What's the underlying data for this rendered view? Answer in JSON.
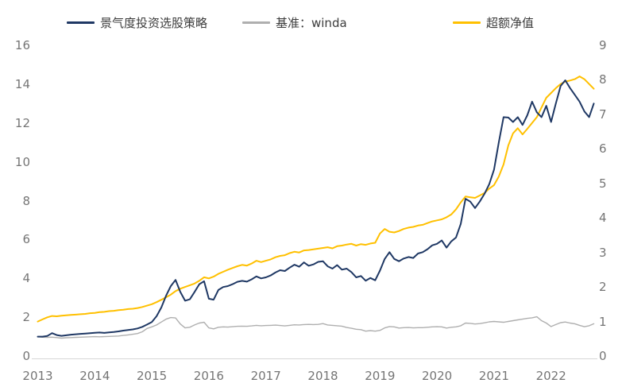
{
  "legend": {
    "items": [
      {
        "label": "景气度投资选股策略",
        "color": "#1F3864"
      },
      {
        "label": "基准：winda",
        "color": "#AFAFAF"
      },
      {
        "label": "超额净值",
        "color": "#FFC000"
      }
    ]
  },
  "chart_data": {
    "type": "line",
    "title": "",
    "xlabel": "",
    "ylabel_left": "",
    "ylabel_right": "",
    "grid": false,
    "legend_position": "top",
    "x_start_year": 2013,
    "points_per_year": 12,
    "x_tick_labels": [
      "2013",
      "2014",
      "2015",
      "2016",
      "2017",
      "2018",
      "2019",
      "2020",
      "2021",
      "2022"
    ],
    "left_axis": {
      "range": [
        0,
        16
      ],
      "ticks": [
        0,
        2,
        4,
        6,
        8,
        10,
        12,
        14,
        16
      ]
    },
    "right_axis": {
      "range": [
        0,
        9
      ],
      "ticks": [
        0,
        1,
        2,
        3,
        4,
        5,
        6,
        7,
        8,
        9
      ]
    },
    "series": [
      {
        "name": "基准：winda",
        "axis": "left",
        "color": "#AFAFAF",
        "width": 1.4,
        "values": [
          1.0,
          0.97,
          0.96,
          0.97,
          0.95,
          0.92,
          0.94,
          0.95,
          0.96,
          0.97,
          0.98,
          0.99,
          1.0,
          0.99,
          1.0,
          1.01,
          1.02,
          1.03,
          1.06,
          1.09,
          1.12,
          1.16,
          1.25,
          1.42,
          1.5,
          1.6,
          1.75,
          1.9,
          1.98,
          1.96,
          1.65,
          1.45,
          1.48,
          1.6,
          1.7,
          1.74,
          1.45,
          1.4,
          1.48,
          1.5,
          1.49,
          1.51,
          1.53,
          1.54,
          1.53,
          1.55,
          1.58,
          1.56,
          1.57,
          1.58,
          1.59,
          1.57,
          1.55,
          1.58,
          1.61,
          1.6,
          1.62,
          1.63,
          1.62,
          1.63,
          1.67,
          1.6,
          1.58,
          1.56,
          1.54,
          1.47,
          1.43,
          1.38,
          1.36,
          1.28,
          1.31,
          1.28,
          1.32,
          1.45,
          1.52,
          1.5,
          1.44,
          1.46,
          1.47,
          1.45,
          1.46,
          1.46,
          1.48,
          1.5,
          1.51,
          1.5,
          1.44,
          1.48,
          1.5,
          1.56,
          1.7,
          1.68,
          1.65,
          1.67,
          1.71,
          1.76,
          1.78,
          1.76,
          1.74,
          1.78,
          1.82,
          1.86,
          1.9,
          1.94,
          1.97,
          2.02,
          1.82,
          1.7,
          1.52,
          1.62,
          1.72,
          1.75,
          1.7,
          1.66,
          1.58,
          1.51,
          1.56,
          1.66
        ]
      },
      {
        "name": "超额净值",
        "axis": "right",
        "color": "#FFC000",
        "width": 2,
        "values": [
          1.0,
          1.06,
          1.12,
          1.16,
          1.15,
          1.17,
          1.18,
          1.19,
          1.2,
          1.21,
          1.22,
          1.24,
          1.25,
          1.27,
          1.28,
          1.3,
          1.31,
          1.33,
          1.34,
          1.36,
          1.37,
          1.39,
          1.42,
          1.46,
          1.5,
          1.56,
          1.63,
          1.7,
          1.78,
          1.88,
          1.95,
          2.0,
          2.05,
          2.1,
          2.18,
          2.28,
          2.25,
          2.3,
          2.38,
          2.44,
          2.5,
          2.55,
          2.6,
          2.64,
          2.62,
          2.68,
          2.76,
          2.72,
          2.76,
          2.8,
          2.86,
          2.9,
          2.92,
          2.98,
          3.02,
          3.0,
          3.06,
          3.07,
          3.09,
          3.11,
          3.13,
          3.15,
          3.12,
          3.18,
          3.2,
          3.23,
          3.25,
          3.2,
          3.24,
          3.22,
          3.26,
          3.28,
          3.55,
          3.68,
          3.6,
          3.58,
          3.62,
          3.68,
          3.72,
          3.74,
          3.78,
          3.8,
          3.85,
          3.9,
          3.93,
          3.96,
          4.02,
          4.1,
          4.25,
          4.45,
          4.62,
          4.6,
          4.58,
          4.65,
          4.72,
          4.85,
          4.95,
          5.2,
          5.55,
          6.1,
          6.45,
          6.6,
          6.42,
          6.58,
          6.75,
          6.92,
          7.2,
          7.48,
          7.62,
          7.76,
          7.88,
          7.95,
          7.98,
          8.02,
          8.1,
          8.02,
          7.88,
          7.74
        ]
      },
      {
        "name": "景气度投资选股策略",
        "axis": "left",
        "color": "#1F3864",
        "width": 2,
        "values": [
          1.0,
          1.0,
          1.03,
          1.18,
          1.08,
          1.04,
          1.07,
          1.1,
          1.12,
          1.14,
          1.16,
          1.18,
          1.2,
          1.21,
          1.19,
          1.22,
          1.24,
          1.27,
          1.31,
          1.34,
          1.37,
          1.42,
          1.5,
          1.62,
          1.75,
          2.05,
          2.5,
          3.1,
          3.6,
          3.92,
          3.3,
          2.85,
          2.92,
          3.3,
          3.7,
          3.85,
          2.95,
          2.9,
          3.4,
          3.55,
          3.6,
          3.7,
          3.82,
          3.87,
          3.83,
          3.95,
          4.1,
          4.0,
          4.05,
          4.15,
          4.3,
          4.42,
          4.38,
          4.55,
          4.7,
          4.6,
          4.82,
          4.65,
          4.72,
          4.85,
          4.88,
          4.62,
          4.5,
          4.68,
          4.45,
          4.5,
          4.32,
          4.05,
          4.12,
          3.88,
          4.02,
          3.9,
          4.4,
          5.0,
          5.35,
          5.0,
          4.88,
          5.02,
          5.1,
          5.05,
          5.28,
          5.35,
          5.5,
          5.7,
          5.78,
          5.95,
          5.58,
          5.9,
          6.1,
          6.8,
          8.1,
          7.95,
          7.62,
          7.95,
          8.35,
          8.85,
          9.6,
          11.0,
          12.3,
          12.28,
          12.05,
          12.3,
          11.9,
          12.4,
          13.1,
          12.55,
          12.3,
          12.88,
          12.05,
          13.0,
          13.9,
          14.2,
          13.8,
          13.45,
          13.1,
          12.6,
          12.3,
          13.0
        ]
      }
    ]
  }
}
